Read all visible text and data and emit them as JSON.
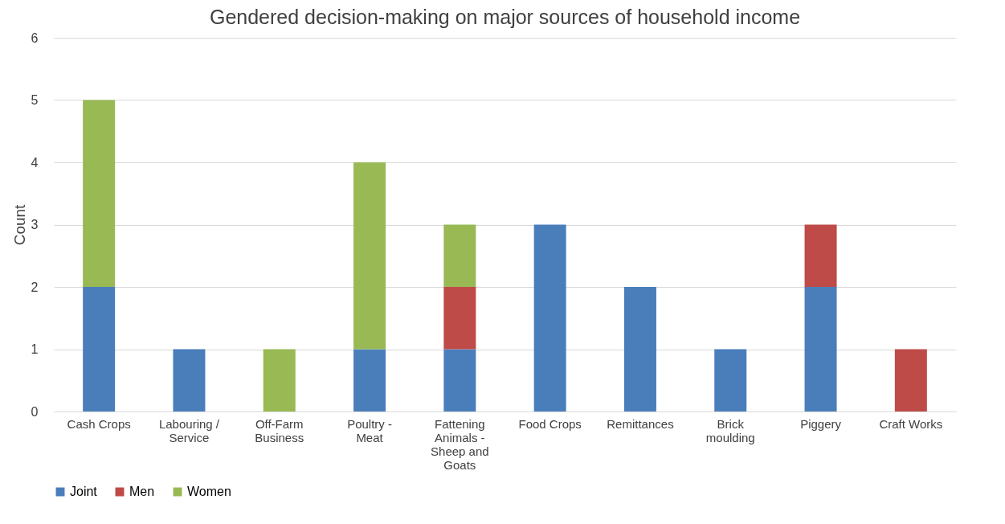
{
  "chart_data": {
    "type": "bar",
    "title": "Gendered decision-making on major sources of household income",
    "ylabel": "Count",
    "categories": [
      "Cash Crops",
      "Labouring / Service",
      "Off-Farm Business",
      "Poultry - Meat",
      "Fattening Animals - Sheep and Goats",
      "Food Crops",
      "Remittances",
      "Brick moulding",
      "Piggery",
      "Craft Works"
    ],
    "series": [
      {
        "name": "Joint",
        "color": "#4a7ebb",
        "values": [
          2,
          1,
          0,
          1,
          1,
          3,
          2,
          1,
          2,
          0
        ]
      },
      {
        "name": "Men",
        "color": "#be4b48",
        "values": [
          0,
          0,
          0,
          0,
          1,
          0,
          0,
          0,
          1,
          1
        ]
      },
      {
        "name": "Women",
        "color": "#98b954",
        "values": [
          3,
          0,
          1,
          3,
          1,
          0,
          0,
          0,
          0,
          0
        ]
      }
    ],
    "stacked": true,
    "ylim": [
      0,
      6
    ],
    "yticks": [
      0,
      1,
      2,
      3,
      4,
      5,
      6
    ],
    "grid": "y",
    "legend": "bottom"
  }
}
